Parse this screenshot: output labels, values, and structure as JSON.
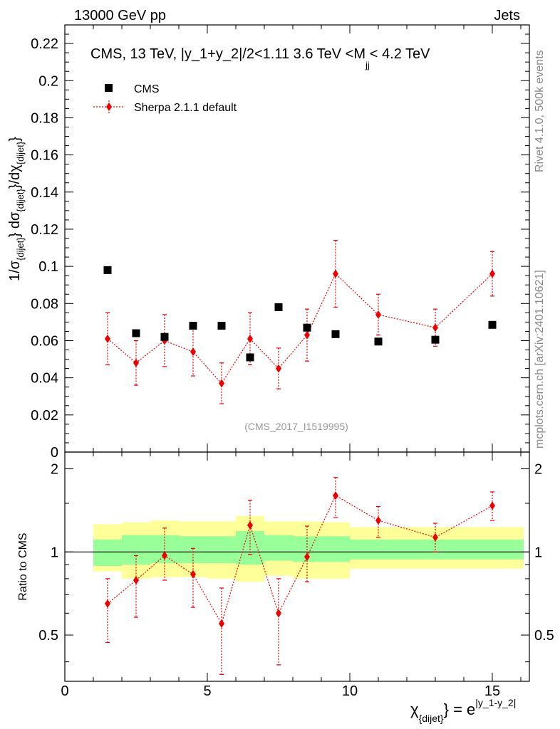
{
  "header": {
    "left": "13000 GeV pp",
    "right": "Jets"
  },
  "side_labels": {
    "rivet": "Rivet 4.1.0,  500k events",
    "mcplots": "mcplots.cern.ch [arXiv:2401.10621]"
  },
  "colors": {
    "data": "#000000",
    "mc": "#ee0000",
    "band_inner": "#99ff99",
    "band_outer": "#ffff99",
    "watermark": "#999999"
  },
  "chart_data": {
    "type": "scatter",
    "title": "CMS, 13 TeV, |y_1+y_2|/2<1.11 3.6 TeV <M",
    "title_sub": "jj",
    "title_tail": "< 4.2 TeV",
    "watermark": "(CMS_2017_I1519995)",
    "xlabel": "χ",
    "xlabel_sub": "{dijet}",
    "xlabel_eq": "} = e",
    "xlabel_sup": "|y_1-y_2|",
    "ylabel": "1/σ_{dijet} dσ_{dijet}/dχ_{dijet}",
    "ratio_ylabel": "Ratio to CMS",
    "xlim": [
      0,
      16.3
    ],
    "ylim": [
      0,
      0.23
    ],
    "ratio_ylim": [
      0.34,
      2.3
    ],
    "x_ticks": [
      0,
      5,
      10,
      15
    ],
    "x_tick_labels": [
      "0",
      "5",
      "10",
      "15"
    ],
    "y_ticks": [
      0,
      0.02,
      0.04,
      0.06,
      0.08,
      0.1,
      0.12,
      0.14,
      0.16,
      0.18,
      0.2,
      0.22
    ],
    "y_tick_labels": [
      "0",
      "0.02",
      "0.04",
      "0.06",
      "0.08",
      "0.1",
      "0.12",
      "0.14",
      "0.16",
      "0.18",
      "0.2",
      "0.22"
    ],
    "ratio_ticks": [
      0.5,
      1,
      2
    ],
    "ratio_tick_labels": [
      "0.5",
      "1",
      "2"
    ],
    "legend": [
      {
        "name": "CMS",
        "marker": "square"
      },
      {
        "name": "Sherpa 2.1.1 default",
        "marker": "diamond"
      }
    ],
    "bins": [
      [
        1,
        2
      ],
      [
        2,
        3
      ],
      [
        3,
        4
      ],
      [
        4,
        5
      ],
      [
        5,
        6
      ],
      [
        6,
        7
      ],
      [
        7,
        8
      ],
      [
        8,
        9
      ],
      [
        9,
        10
      ],
      [
        10,
        12
      ],
      [
        12,
        14
      ],
      [
        14,
        16.1
      ]
    ],
    "x": [
      1.5,
      2.5,
      3.5,
      4.5,
      5.5,
      6.5,
      7.5,
      8.5,
      9.5,
      11,
      13,
      15
    ],
    "series": [
      {
        "name": "CMS",
        "values": [
          0.098,
          0.064,
          0.062,
          0.068,
          0.068,
          0.051,
          0.078,
          0.067,
          0.0635,
          0.0595,
          0.0605,
          0.0685
        ]
      },
      {
        "name": "Sherpa 2.1.1 default",
        "values": [
          0.061,
          0.048,
          0.06,
          0.054,
          0.037,
          0.061,
          0.045,
          0.063,
          0.096,
          0.074,
          0.067,
          0.096
        ],
        "err_low": [
          0.014,
          0.012,
          0.014,
          0.013,
          0.011,
          0.014,
          0.011,
          0.014,
          0.018,
          0.011,
          0.01,
          0.012
        ],
        "err_high": [
          0.014,
          0.012,
          0.014,
          0.013,
          0.011,
          0.014,
          0.011,
          0.014,
          0.018,
          0.011,
          0.01,
          0.012
        ]
      }
    ],
    "ratio": {
      "values": [
        0.65,
        0.79,
        0.97,
        0.83,
        0.55,
        1.25,
        0.6,
        0.96,
        1.6,
        1.3,
        1.13,
        1.47
      ],
      "err_low": [
        0.18,
        0.21,
        0.18,
        0.2,
        0.19,
        0.27,
        0.21,
        0.18,
        0.27,
        0.17,
        0.13,
        0.17
      ],
      "err_high": [
        0.15,
        0.18,
        0.25,
        0.2,
        0.19,
        0.29,
        0.2,
        0.28,
        0.26,
        0.16,
        0.14,
        0.18
      ],
      "band_inner": [
        [
          0.89,
          1.11
        ],
        [
          0.9,
          1.15
        ],
        [
          0.91,
          1.15
        ],
        [
          0.91,
          1.14
        ],
        [
          0.91,
          1.14
        ],
        [
          0.9,
          1.19
        ],
        [
          0.93,
          1.15
        ],
        [
          0.92,
          1.14
        ],
        [
          0.92,
          1.14
        ],
        [
          0.94,
          1.11
        ],
        [
          0.94,
          1.11
        ],
        [
          0.94,
          1.11
        ]
      ],
      "band_outer": [
        [
          0.85,
          1.26
        ],
        [
          0.8,
          1.28
        ],
        [
          0.81,
          1.3
        ],
        [
          0.81,
          1.29
        ],
        [
          0.8,
          1.29
        ],
        [
          0.78,
          1.35
        ],
        [
          0.82,
          1.29
        ],
        [
          0.8,
          1.29
        ],
        [
          0.8,
          1.28
        ],
        [
          0.87,
          1.23
        ],
        [
          0.87,
          1.23
        ],
        [
          0.87,
          1.23
        ]
      ]
    }
  }
}
